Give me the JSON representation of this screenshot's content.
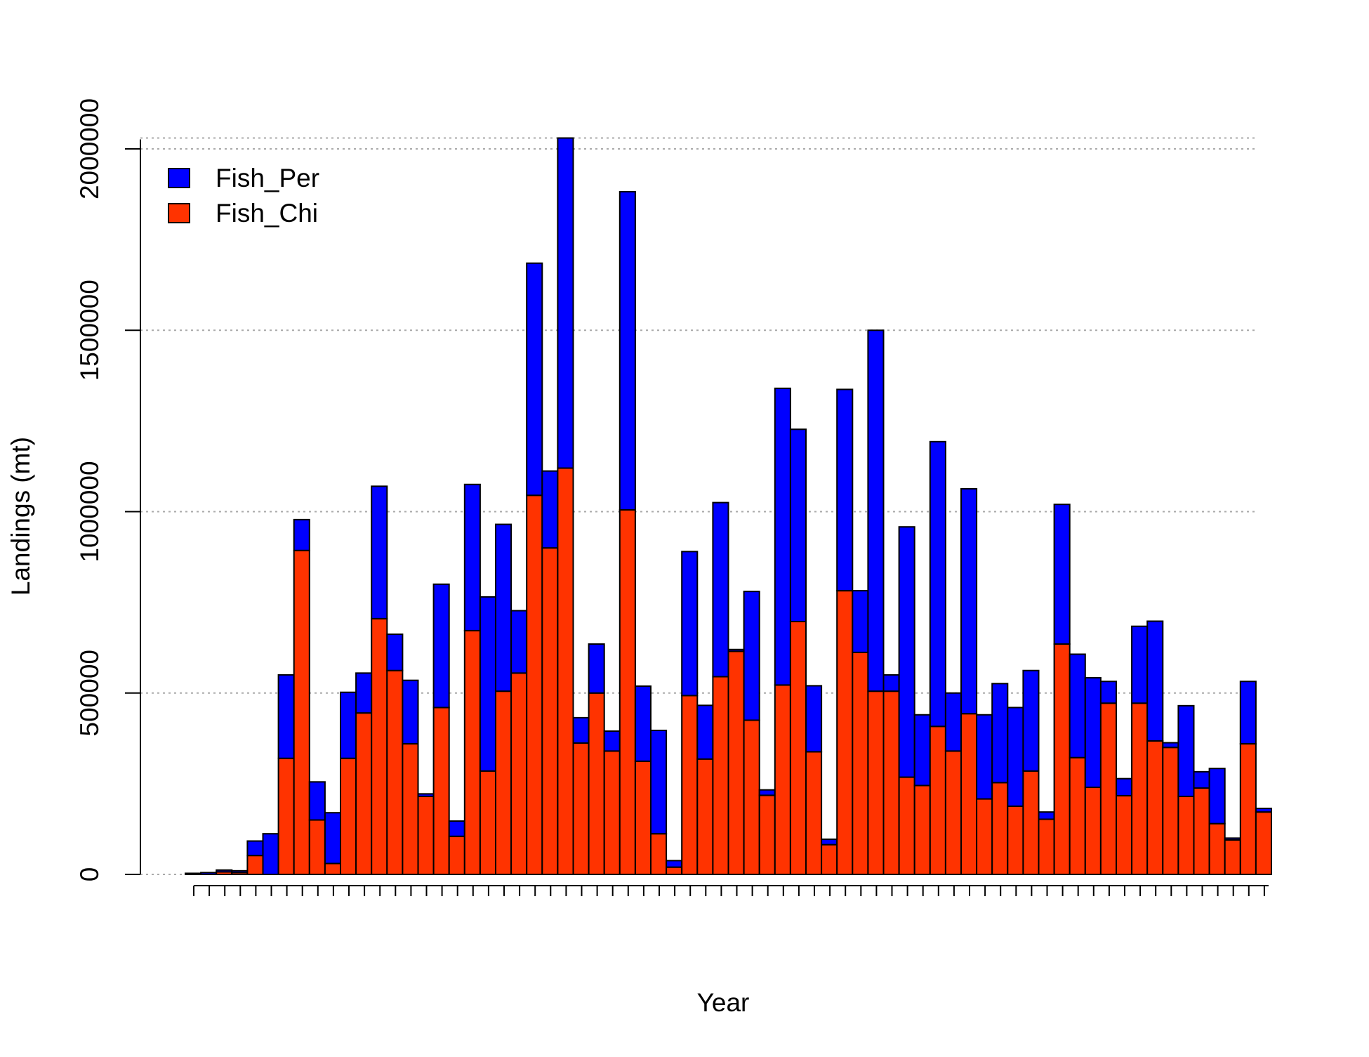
{
  "chart_data": {
    "type": "bar",
    "stacked": true,
    "title": "",
    "xlabel": "Year",
    "ylabel": "Landings (mt)",
    "ylim": [
      0,
      2000000
    ],
    "yticks": [
      "0",
      "500000",
      "1000000",
      "1500000",
      "2000000"
    ],
    "grid": "dotted horizontal at y ticks",
    "legend_position": "top-left",
    "colors": {
      "Fish_Per": "#0000FF",
      "Fish_Chi": "#FF3300",
      "grid": "#AAAAAA",
      "edge": "#000000"
    },
    "series": [
      {
        "name": "Fish_Chi",
        "values": [
          0,
          0,
          7000,
          5000,
          52000,
          0,
          320000,
          893000,
          150000,
          30000,
          320000,
          445000,
          705000,
          562000,
          360000,
          215000,
          460000,
          105000,
          672000,
          285000,
          505000,
          555000,
          1045000,
          900000,
          1120000,
          362000,
          500000,
          340000,
          1005000,
          312000,
          112000,
          20000,
          493000,
          318000,
          545000,
          615000,
          425000,
          218000,
          522000,
          697000,
          338000,
          82000,
          782000,
          612000,
          505000,
          505000,
          268000,
          245000,
          408000,
          340000,
          443000,
          208000,
          253000,
          188000,
          285000,
          152000,
          635000,
          322000,
          240000,
          472000,
          217000,
          472000,
          368000,
          350000,
          215000,
          238000,
          140000,
          95000,
          360000,
          172000
        ]
      },
      {
        "name": "Fish_Per",
        "values": [
          3000,
          5000,
          5000,
          5000,
          40000,
          112000,
          230000,
          85000,
          105000,
          140000,
          182000,
          110000,
          365000,
          100000,
          175000,
          7000,
          340000,
          42000,
          403000,
          480000,
          460000,
          172000,
          640000,
          212000,
          910000,
          70000,
          135000,
          55000,
          877000,
          207000,
          285000,
          18000,
          397000,
          148000,
          480000,
          5000,
          355000,
          15000,
          818000,
          530000,
          182000,
          15000,
          555000,
          170000,
          995000,
          45000,
          690000,
          195000,
          785000,
          160000,
          620000,
          232000,
          273000,
          272000,
          277000,
          20000,
          385000,
          285000,
          302000,
          60000,
          47000,
          212000,
          330000,
          13000,
          250000,
          45000,
          152000,
          5000,
          172000,
          10000
        ]
      }
    ]
  }
}
